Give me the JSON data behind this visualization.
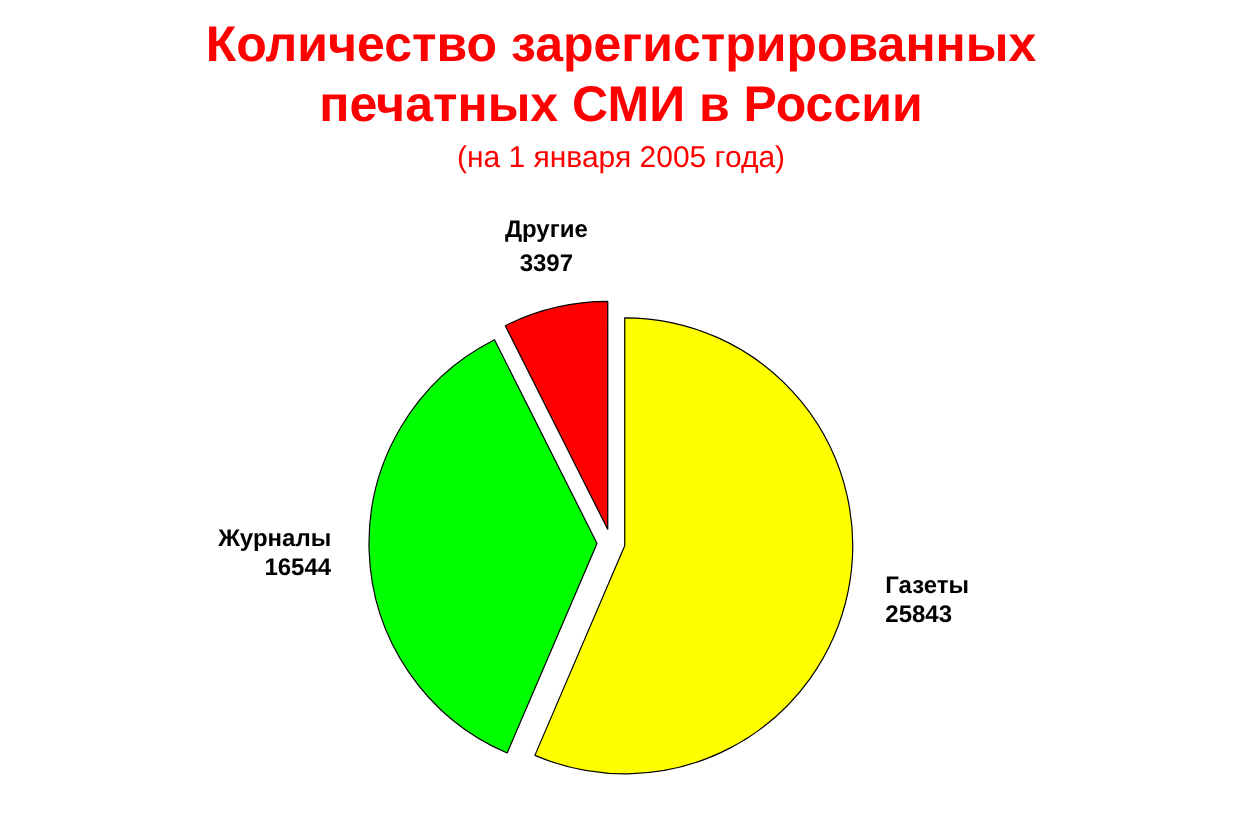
{
  "chart_data": {
    "type": "pie",
    "title": "Количество зарегистрированных печатных СМИ в России",
    "subtitle": "(на 1 января 2005 года)",
    "categories": [
      "Газеты",
      "Журналы",
      "Другие"
    ],
    "values": [
      25843,
      16544,
      3397
    ],
    "colors": [
      "#ffff00",
      "#00ff00",
      "#ff0000"
    ],
    "data_labels": true
  }
}
